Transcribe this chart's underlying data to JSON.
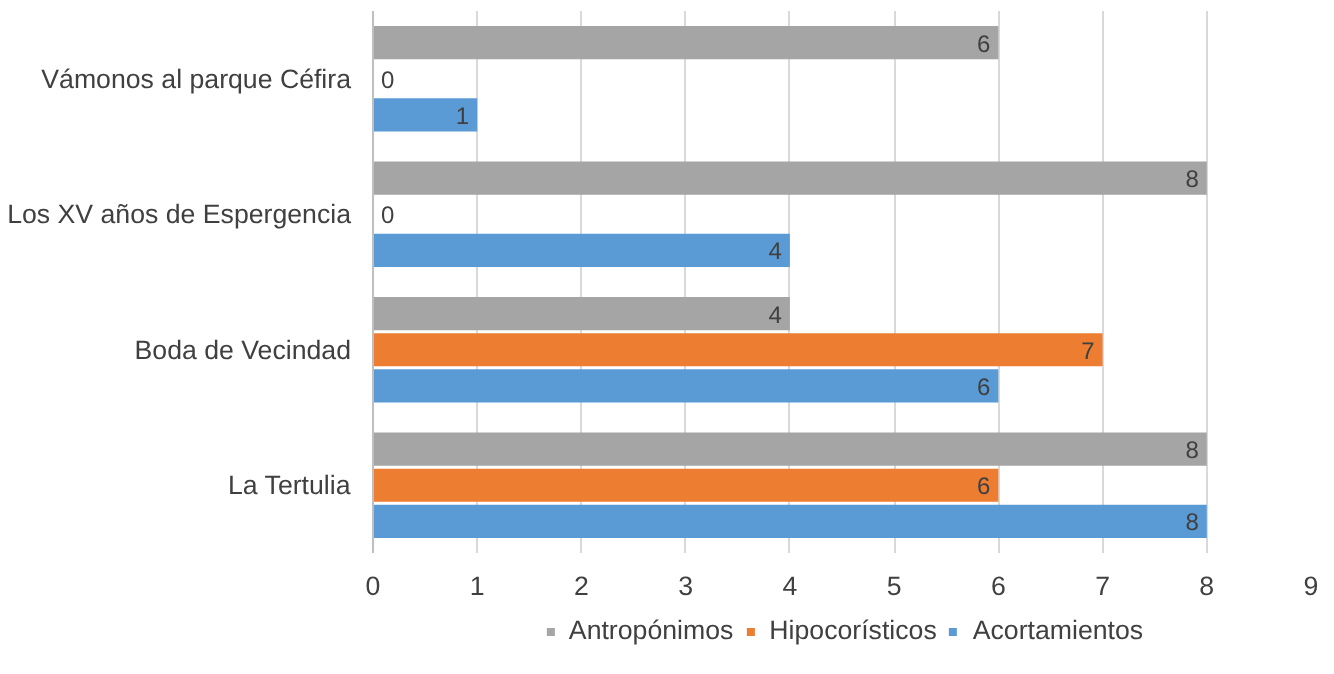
{
  "chart_data": {
    "type": "bar",
    "orientation": "horizontal",
    "categories": [
      "Vámonos al parque Céfira",
      "Los XV años de Espergencia",
      "Boda de Vecindad",
      "La Tertulia"
    ],
    "series": [
      {
        "name": "Antropónimos",
        "color": "#a5a5a5",
        "values": [
          6,
          8,
          4,
          8
        ]
      },
      {
        "name": "Hipocorísticos",
        "color": "#ed7d31",
        "values": [
          0,
          0,
          7,
          6
        ]
      },
      {
        "name": "Acortamientos",
        "color": "#5b9bd5",
        "values": [
          1,
          4,
          6,
          8
        ]
      }
    ],
    "xlim": [
      0,
      9
    ],
    "xticks": [
      0,
      1,
      2,
      3,
      4,
      5,
      6,
      7,
      8,
      9
    ],
    "grid": "x",
    "legend": "bottom",
    "data_labels": true
  }
}
